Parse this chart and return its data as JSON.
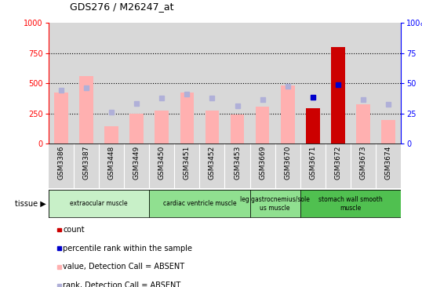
{
  "title": "GDS276 / M26247_at",
  "samples": [
    "GSM3386",
    "GSM3387",
    "GSM3448",
    "GSM3449",
    "GSM3450",
    "GSM3451",
    "GSM3452",
    "GSM3453",
    "GSM3669",
    "GSM3670",
    "GSM3671",
    "GSM3672",
    "GSM3673",
    "GSM3674"
  ],
  "values_absent": [
    420,
    560,
    140,
    245,
    270,
    420,
    270,
    240,
    305,
    480,
    295,
    null,
    325,
    195
  ],
  "ranks_absent_pct": [
    44,
    46,
    26,
    33,
    37.5,
    41,
    37.5,
    31.5,
    36.5,
    47.5,
    38.5,
    null,
    36.5,
    32.5
  ],
  "count_present": [
    null,
    null,
    null,
    null,
    null,
    null,
    null,
    null,
    null,
    null,
    295,
    800,
    null,
    null
  ],
  "percentile_present_pct": [
    null,
    null,
    null,
    null,
    null,
    null,
    null,
    null,
    null,
    null,
    38.5,
    49,
    null,
    null
  ],
  "tissue_spans": [
    [
      0,
      4,
      "extraocular muscle",
      "#c8f0c8"
    ],
    [
      4,
      8,
      "cardiac ventricle muscle",
      "#90e090"
    ],
    [
      8,
      10,
      "leg gastrocnemius/sole\nus muscle",
      "#90e090"
    ],
    [
      10,
      14,
      "stomach wall smooth\nmuscle",
      "#50c050"
    ]
  ],
  "ylim_left": [
    0,
    1000
  ],
  "ylim_right": [
    0,
    100
  ],
  "left_ticks": [
    0,
    250,
    500,
    750,
    1000
  ],
  "right_ticks": [
    0,
    25,
    50,
    75,
    100
  ],
  "value_color": "#ffb0b0",
  "rank_color": "#b0b0d8",
  "count_color": "#cc0000",
  "percentile_color": "#0000cc",
  "bg_color": "#ffffff",
  "col_bg": "#d8d8d8",
  "legend_items": [
    [
      "#cc0000",
      "count"
    ],
    [
      "#0000cc",
      "percentile rank within the sample"
    ],
    [
      "#ffb0b0",
      "value, Detection Call = ABSENT"
    ],
    [
      "#b0b0d8",
      "rank, Detection Call = ABSENT"
    ]
  ]
}
